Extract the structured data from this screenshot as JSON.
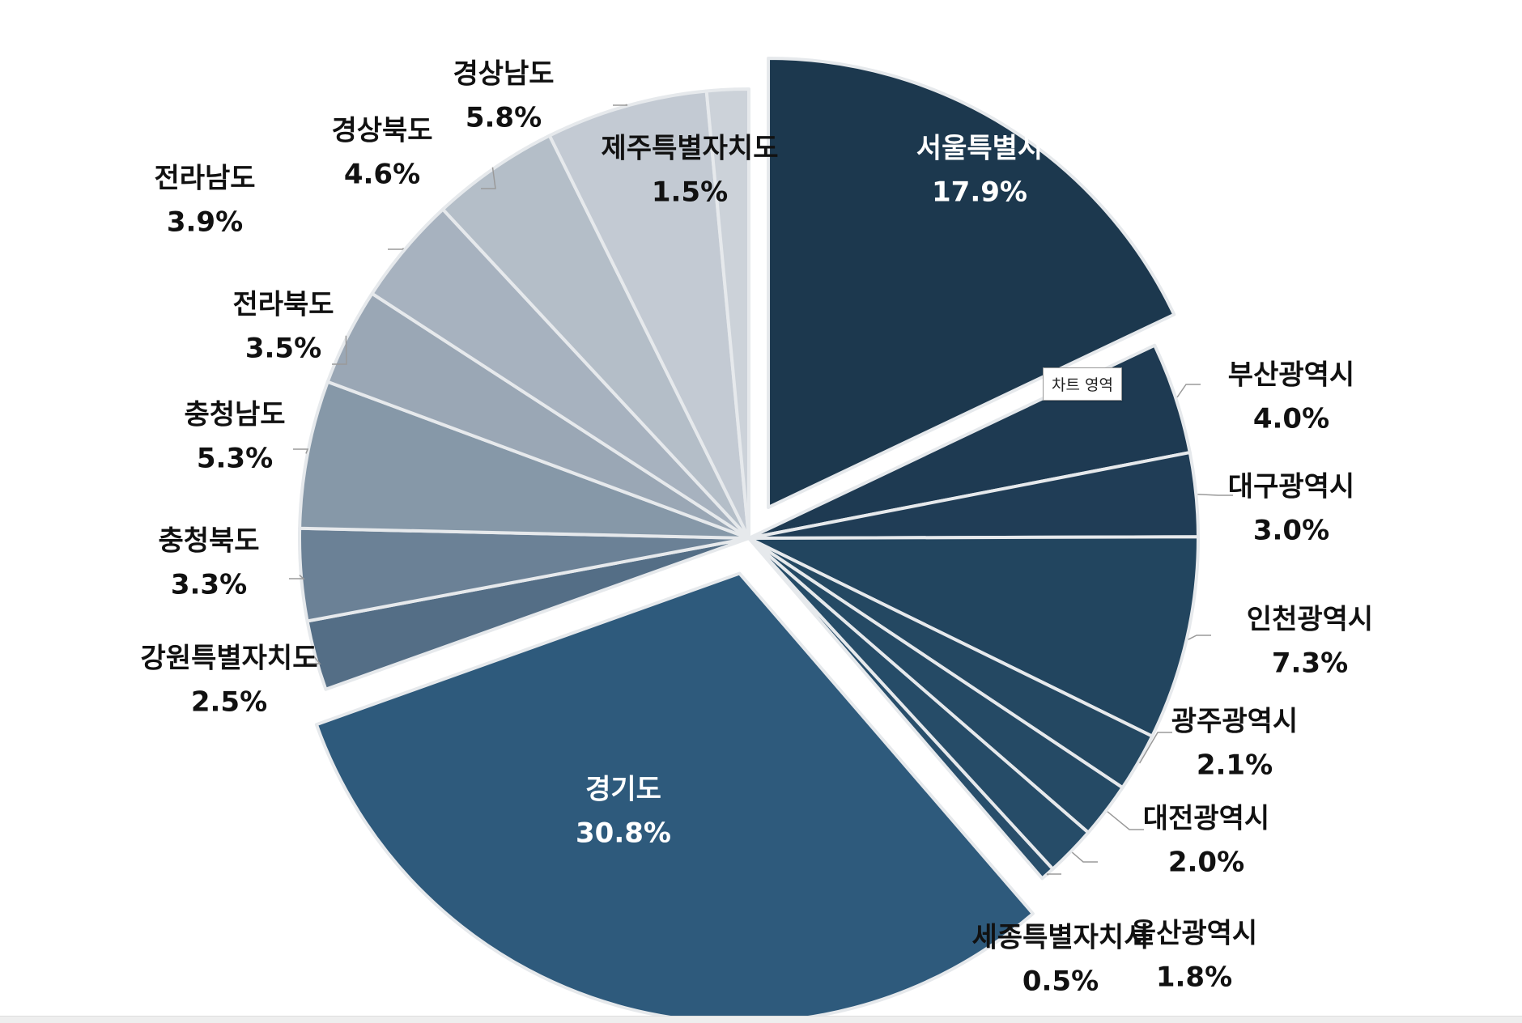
{
  "tooltip": "차트 영역",
  "chart_data": {
    "type": "pie",
    "start_angle_deg": 0,
    "direction": "clockwise",
    "exploded": [
      "서울특별시",
      "경기도"
    ],
    "slices": [
      {
        "label": "서울특별시",
        "value": 17.9,
        "display": "17.9%",
        "color": "#1c384e"
      },
      {
        "label": "부산광역시",
        "value": 4.0,
        "display": "4.0%",
        "color": "#1e3a52"
      },
      {
        "label": "대구광역시",
        "value": 3.0,
        "display": "3.0%",
        "color": "#203d56"
      },
      {
        "label": "인천광역시",
        "value": 7.3,
        "display": "7.3%",
        "color": "#22455f"
      },
      {
        "label": "광주광역시",
        "value": 2.1,
        "display": "2.1%",
        "color": "#244862"
      },
      {
        "label": "대전광역시",
        "value": 2.0,
        "display": "2.0%",
        "color": "#254a65"
      },
      {
        "label": "울산광역시",
        "value": 1.8,
        "display": "1.8%",
        "color": "#264c68"
      },
      {
        "label": "세종특별자치시",
        "value": 0.5,
        "display": "0.5%",
        "color": "#284e6b"
      },
      {
        "label": "경기도",
        "value": 30.8,
        "display": "30.8%",
        "color": "#2e5a7c"
      },
      {
        "label": "강원특별자치도",
        "value": 2.5,
        "display": "2.5%",
        "color": "#546e86"
      },
      {
        "label": "충청북도",
        "value": 3.3,
        "display": "3.3%",
        "color": "#6b8196"
      },
      {
        "label": "충청남도",
        "value": 5.3,
        "display": "5.3%",
        "color": "#8698a8"
      },
      {
        "label": "전라북도",
        "value": 3.5,
        "display": "3.5%",
        "color": "#9aa7b5"
      },
      {
        "label": "전라남도",
        "value": 3.9,
        "display": "3.9%",
        "color": "#a7b2bf"
      },
      {
        "label": "경상북도",
        "value": 4.6,
        "display": "4.6%",
        "color": "#b4bec8"
      },
      {
        "label": "경상남도",
        "value": 5.8,
        "display": "5.8%",
        "color": "#c3cad3"
      },
      {
        "label": "제주특별자치도",
        "value": 1.5,
        "display": "1.5%",
        "color": "#ccd2d9"
      }
    ]
  }
}
